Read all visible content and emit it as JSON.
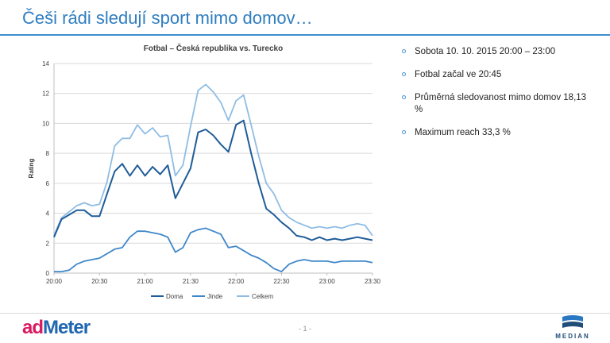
{
  "slide": {
    "title": "Češi rádi sledují sport mimo domov…",
    "page_number": "- 1 -"
  },
  "bullets": [
    "Sobota 10. 10. 2015 20:00 – 23:00",
    "Fotbal začal ve 20:45",
    "Průměrná sledovanost mimo domov 18,13 %",
    "Maximum reach 33,3 %"
  ],
  "logos": {
    "admeter_ad": "ad",
    "admeter_meter": "Meter",
    "median": "MEDIAN"
  },
  "colors": {
    "title": "#2f7ec0",
    "doma": "#1f5c99",
    "jinde": "#3f87c9",
    "celkem": "#8fbde4",
    "bullet": "#4b95d2"
  },
  "chart_data": {
    "type": "line",
    "title": "Fotbal – Česká republika vs. Turecko",
    "xlabel": "",
    "ylabel": "Rating",
    "x_categories": [
      "20:00",
      "20:30",
      "21:00",
      "21:30",
      "22:00",
      "22:30",
      "23:00",
      "23:30"
    ],
    "yticks": [
      0,
      2,
      4,
      6,
      8,
      10,
      12,
      14
    ],
    "ylim": [
      0,
      14
    ],
    "x_minutes": [
      0,
      5,
      10,
      15,
      20,
      25,
      30,
      35,
      40,
      45,
      50,
      55,
      60,
      65,
      70,
      75,
      80,
      85,
      90,
      95,
      100,
      105,
      110,
      115,
      120,
      125,
      130,
      135,
      140,
      145,
      150,
      155,
      160,
      165,
      170,
      175,
      180,
      185,
      190,
      195,
      200,
      205,
      210
    ],
    "series": [
      {
        "name": "Doma",
        "values": [
          2.4,
          3.6,
          3.9,
          4.2,
          4.2,
          3.8,
          3.8,
          5.3,
          6.8,
          7.3,
          6.5,
          7.2,
          6.5,
          7.1,
          6.6,
          7.2,
          5.0,
          6.0,
          7.0,
          9.4,
          9.6,
          9.2,
          8.6,
          8.1,
          9.9,
          10.2,
          8.0,
          6.0,
          4.3,
          3.9,
          3.4,
          3.0,
          2.5,
          2.4,
          2.2,
          2.4,
          2.2,
          2.3,
          2.2,
          2.3,
          2.4,
          2.3,
          2.2
        ]
      },
      {
        "name": "Jinde",
        "values": [
          0.1,
          0.1,
          0.2,
          0.6,
          0.8,
          0.9,
          1.0,
          1.3,
          1.6,
          1.7,
          2.4,
          2.8,
          2.8,
          2.7,
          2.6,
          2.4,
          1.4,
          1.7,
          2.7,
          2.9,
          3.0,
          2.8,
          2.6,
          1.7,
          1.8,
          1.5,
          1.2,
          1.0,
          0.7,
          0.3,
          0.1,
          0.6,
          0.8,
          0.9,
          0.8,
          0.8,
          0.8,
          0.7,
          0.8,
          0.8,
          0.8,
          0.8,
          0.7
        ]
      },
      {
        "name": "Celkem",
        "values": [
          2.5,
          3.7,
          4.1,
          4.5,
          4.7,
          4.5,
          4.6,
          6.1,
          8.5,
          9.0,
          9.0,
          9.9,
          9.3,
          9.7,
          9.1,
          9.2,
          6.5,
          7.2,
          9.8,
          12.2,
          12.6,
          12.1,
          11.4,
          10.2,
          11.5,
          11.9,
          9.9,
          7.8,
          6.0,
          5.3,
          4.2,
          3.7,
          3.4,
          3.2,
          3.0,
          3.1,
          3.0,
          3.1,
          3.0,
          3.2,
          3.3,
          3.2,
          2.5
        ]
      }
    ],
    "legend_position": "bottom",
    "grid": true
  }
}
